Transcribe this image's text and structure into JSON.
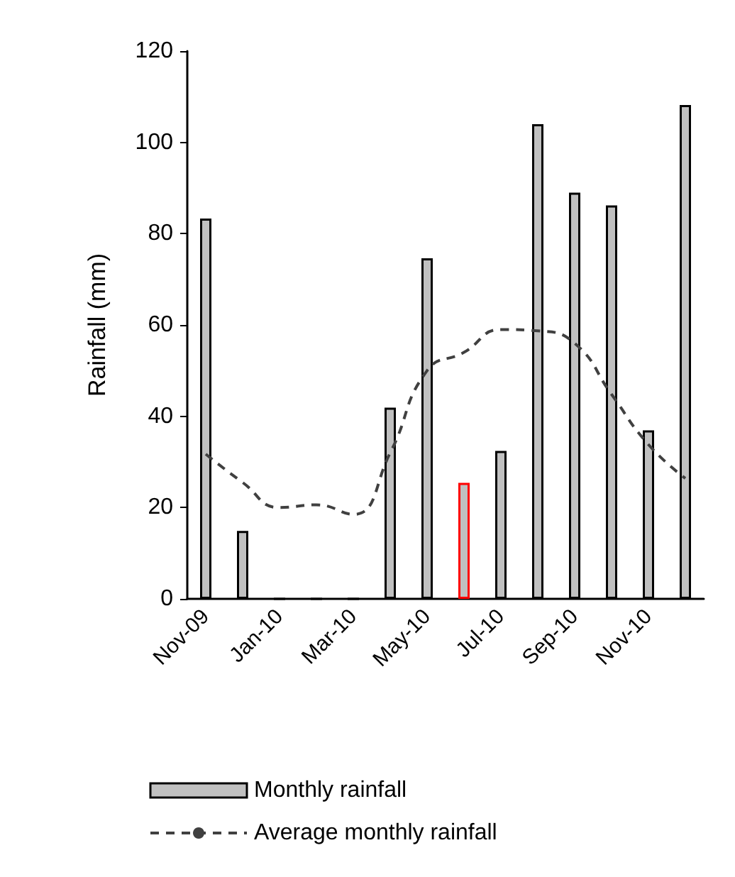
{
  "chart_data": {
    "type": "bar",
    "ylabel": "Rainfall (mm)",
    "categories": [
      "Nov-09",
      null,
      "Jan-10",
      null,
      "Mar-10",
      null,
      "May-10",
      null,
      "Jul-10",
      null,
      "Sep-10",
      null,
      "Nov-10",
      null
    ],
    "series": [
      {
        "name": "Monthly rainfall",
        "color": "#c0c0c0",
        "colors": [
          "#000000",
          "#000000",
          "#000000",
          "#000000",
          "#000000",
          "#000000",
          "#000000",
          "#ff0000",
          "#000000",
          "#000000",
          "#000000",
          "#000000",
          "#000000",
          "#000000"
        ],
        "values": [
          83.3,
          14.9,
          0,
          0,
          0,
          41.9,
          74.6,
          25.4,
          32.4,
          104,
          89,
          86.2,
          36.9,
          108.2
        ]
      },
      {
        "name": "Average monthly rainfall",
        "type": "line",
        "color": "#404040",
        "line_style": "dashed",
        "marker": "none",
        "values": [
          31.7,
          25.5,
          20,
          20.6,
          18.5,
          32,
          50,
          54,
          59,
          58.7,
          56,
          44.8,
          33.8,
          26.4
        ]
      }
    ],
    "ylim": [
      0,
      120
    ],
    "yticks": [
      0,
      20,
      40,
      60,
      80,
      100,
      120
    ],
    "grid": false,
    "legend": "bottom"
  }
}
